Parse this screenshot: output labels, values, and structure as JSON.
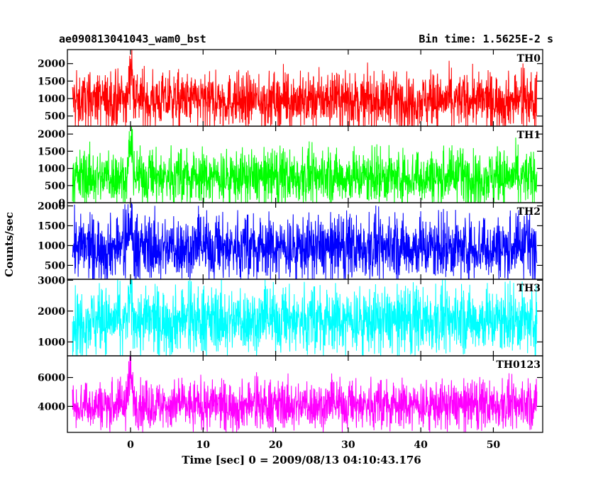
{
  "header": {
    "left": "ae090813041043_wam0_bst",
    "right": "Bin time: 1.5625E-2 s"
  },
  "chart_data": {
    "type": "line",
    "xlabel": "Time [sec] 0 = 2009/08/13 04:10:43.176",
    "ylabel": "Counts/sec",
    "xlim": [
      -8.7,
      56.8
    ],
    "data_x_range": [
      -8,
      56
    ],
    "x_ticks": [
      0,
      10,
      20,
      30,
      40,
      50
    ],
    "bin_time_s": 0.015625,
    "panels": [
      {
        "name": "TH0",
        "color": "#ff0000",
        "ylim": [
          210,
          2400
        ],
        "y_ticks": [
          500,
          1000,
          1500,
          2000
        ],
        "baseline": 950,
        "envelope": [
          300,
          1650
        ],
        "burst": {
          "t": 0,
          "peak": 2400
        }
      },
      {
        "name": "TH1",
        "color": "#00ff00",
        "ylim": [
          0,
          2230
        ],
        "y_ticks": [
          0,
          500,
          1000,
          1500,
          2000
        ],
        "baseline": 750,
        "envelope": [
          130,
          1500
        ],
        "burst": {
          "t": 0,
          "peak": 2230
        }
      },
      {
        "name": "TH2",
        "color": "#0000ff",
        "ylim": [
          150,
          2080
        ],
        "y_ticks": [
          500,
          1000,
          1500,
          2000
        ],
        "baseline": 950,
        "envelope": [
          300,
          1700
        ],
        "burst": {
          "t": 0,
          "peak": 1900
        }
      },
      {
        "name": "TH3",
        "color": "#00ffff",
        "ylim": [
          550,
          3030
        ],
        "y_ticks": [
          1000,
          2000,
          3000
        ],
        "baseline": 1700,
        "envelope": [
          850,
          2700
        ],
        "burst": {
          "t": 0,
          "peak": 2700
        }
      },
      {
        "name": "TH0123",
        "color": "#ff00ff",
        "ylim": [
          2200,
          7500
        ],
        "y_ticks": [
          4000,
          6000
        ],
        "baseline": 4100,
        "envelope": [
          2900,
          5800
        ],
        "burst": {
          "t": 0,
          "peak": 7500
        }
      }
    ]
  }
}
